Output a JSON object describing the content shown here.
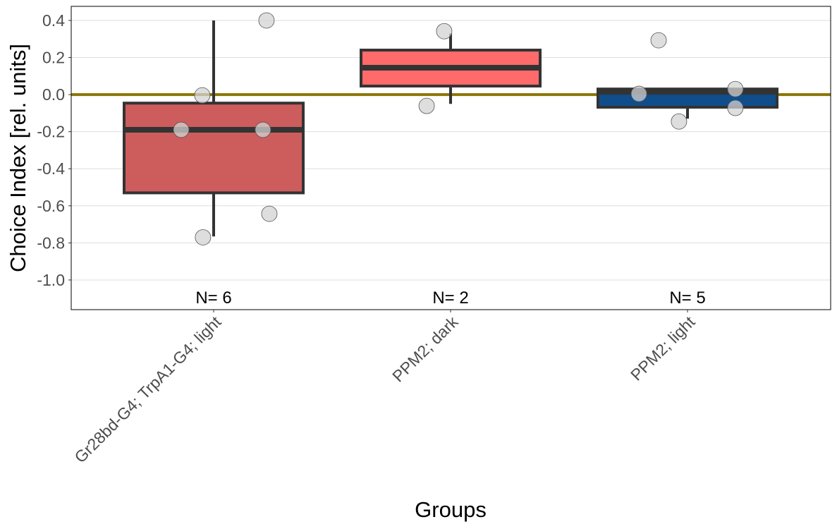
{
  "chart_data": {
    "type": "boxplot",
    "xlabel": "Groups",
    "ylabel": "Choice Index [rel. units]",
    "ylim": [
      -1.16,
      0.476
    ],
    "yticks": [
      "0.4",
      "0.2",
      "0.0",
      "-0.2",
      "-0.4",
      "-0.6",
      "-0.8",
      "-1.0"
    ],
    "ytick_values": [
      0.4,
      0.2,
      0.0,
      -0.2,
      -0.4,
      -0.6,
      -0.8,
      -1.0
    ],
    "grid": true,
    "reference_line": {
      "y": 0,
      "color": "#8B7500"
    },
    "categories": [
      "Gr28bd-G4; TrpA1-G4; light",
      "PPM2; dark",
      "PPM2; light"
    ],
    "n_labels": [
      "N= 6",
      "N= 2",
      "N= 5"
    ],
    "boxes": [
      {
        "color": "#CD5C5C",
        "whisker_low": -0.765,
        "q1": -0.53,
        "median": -0.19,
        "q3": -0.046,
        "whisker_high": 0.4,
        "points": [
          -0.004,
          -0.19,
          -0.19,
          0.4,
          -0.643,
          -0.77
        ]
      },
      {
        "color": "#FF6A6A",
        "whisker_low": -0.05,
        "q1": 0.046,
        "median": 0.145,
        "q3": 0.24,
        "whisker_high": 0.33,
        "points": [
          0.342,
          -0.061
        ]
      },
      {
        "color": "#104E8B",
        "whisker_low": -0.13,
        "q1": -0.068,
        "median": 0.015,
        "q3": 0.03,
        "whisker_high": 0.03,
        "points": [
          0.293,
          0.004,
          -0.145,
          0.03,
          -0.072
        ]
      }
    ]
  }
}
